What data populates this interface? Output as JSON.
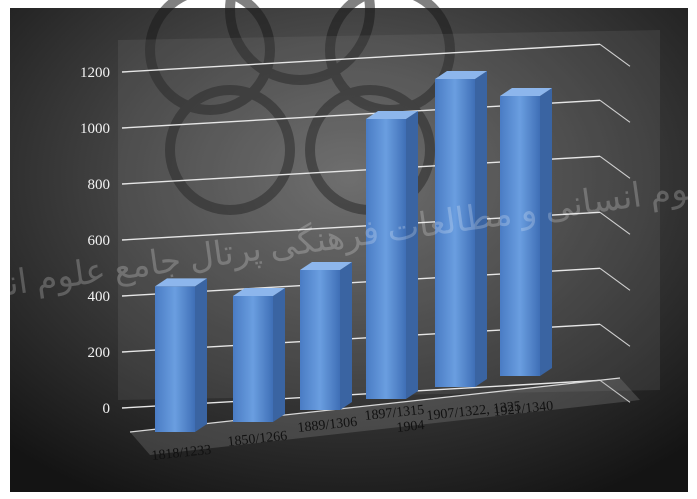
{
  "chart_data": {
    "type": "bar",
    "style": "3d-perspective",
    "categories": [
      "1818/1233",
      "1850/1266",
      "1889/1306",
      "1897/1315",
      "1904",
      "1907/1322, 1325",
      "1921/1340"
    ],
    "bars": [
      {
        "label": "1818/1233",
        "value": 520
      },
      {
        "label": "1850/1266",
        "value": 450
      },
      {
        "label": "1889/1306",
        "value": 500
      },
      {
        "label": "1904",
        "value": 1000
      },
      {
        "label": "1907/1322, 1325",
        "value": 1100
      },
      {
        "label": "1921/1340",
        "value": 1000
      }
    ],
    "y_ticks": [
      "0",
      "200",
      "400",
      "600",
      "800",
      "1000",
      "1200"
    ],
    "ylim": [
      0,
      1200
    ],
    "grid": true,
    "bar_color": "#5b8fd6",
    "background_color": "#2b2b2b",
    "watermark": "پژوهشگاه علوم انسانی و مطالعات فرهنگی پرتال جامع علوم انسانی"
  }
}
